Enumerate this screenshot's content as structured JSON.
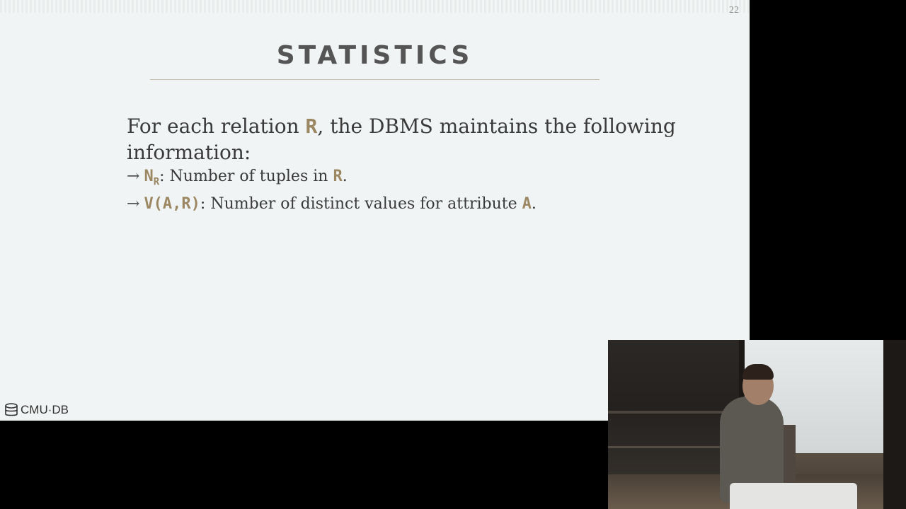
{
  "slide": {
    "number": "22",
    "title": "STATISTICS",
    "intro": {
      "part1": "For each relation ",
      "relation": "R",
      "part2": ", the DBMS maintains the following information:"
    },
    "bullets": [
      {
        "arrow": "→",
        "term": "N",
        "term_sub": "R",
        "text": ": Number of tuples in ",
        "ref": "R",
        "end": "."
      },
      {
        "arrow": "→",
        "term": "V(A,R)",
        "text": ": Number of distinct values for attribute ",
        "ref": "A",
        "end": "."
      }
    ],
    "logo_text": "CMU·DB",
    "colors": {
      "background": "#f1f4f4",
      "title": "#555555",
      "accent": "#9c8763",
      "rule": "#c7bfae"
    }
  },
  "webcam": {
    "icon": "webcam-feed"
  }
}
